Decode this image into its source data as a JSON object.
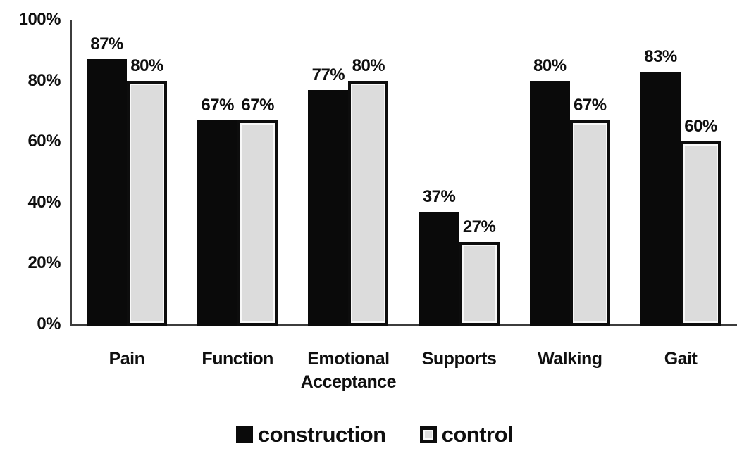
{
  "chart_data": {
    "type": "bar",
    "title": "",
    "categories": [
      "Pain",
      "Function",
      "Emotional Acceptance",
      "Supports",
      "Walking",
      "Gait"
    ],
    "series": [
      {
        "name": "construction",
        "color": "#0a0a0a",
        "values": [
          87,
          67,
          77,
          37,
          80,
          83
        ]
      },
      {
        "name": "control",
        "color": "#dcdcdc",
        "border_color": "#0d0d0d",
        "values": [
          80,
          67,
          80,
          27,
          67,
          60
        ]
      }
    ],
    "data_labels": [
      "87%",
      "67%",
      "77%",
      "37%",
      "80%",
      "83%",
      "80%",
      "67%",
      "80%",
      "27%",
      "67%",
      "60%"
    ],
    "y_ticks": [
      "0%",
      "20%",
      "40%",
      "60%",
      "80%",
      "100%"
    ],
    "y_tick_values": [
      0,
      20,
      40,
      60,
      80,
      100
    ],
    "ylim": [
      0,
      100
    ],
    "grid": false,
    "legend_position": "bottom",
    "axis_color": "#3c3c3c"
  }
}
